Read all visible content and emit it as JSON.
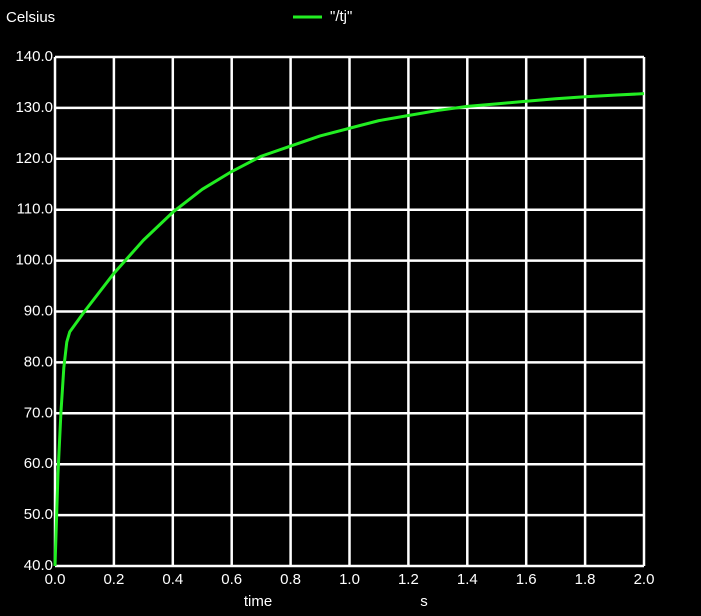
{
  "chart_data": {
    "type": "line",
    "y_label": "Celsius",
    "x_label": "time",
    "x_unit": "s",
    "x": [
      0,
      0.01,
      0.02,
      0.03,
      0.04,
      0.05,
      0.1,
      0.2,
      0.3,
      0.4,
      0.5,
      0.6,
      0.7,
      0.8,
      0.9,
      1.0,
      1.1,
      1.2,
      1.3,
      1.4,
      1.5,
      1.6,
      1.7,
      1.8,
      1.9,
      2.0
    ],
    "series": [
      {
        "name": "\"/tj\"",
        "color": "#22ee22",
        "values": [
          40,
          58,
          70,
          79,
          84,
          86,
          90,
          97.5,
          104,
          109.5,
          114,
          117.5,
          120.5,
          122.5,
          124.5,
          126,
          127.5,
          128.5,
          129.5,
          130.3,
          130.8,
          131.3,
          131.8,
          132.2,
          132.5,
          132.8
        ]
      }
    ],
    "xlim": [
      0,
      2.0
    ],
    "xticks": [
      {
        "value": 0,
        "label": "0.0"
      },
      {
        "value": 0.2,
        "label": "0.2"
      },
      {
        "value": 0.4,
        "label": "0.4"
      },
      {
        "value": 0.6,
        "label": "0.6"
      },
      {
        "value": 0.8,
        "label": "0.8"
      },
      {
        "value": 1.0,
        "label": "1.0"
      },
      {
        "value": 1.2,
        "label": "1.2"
      },
      {
        "value": 1.4,
        "label": "1.4"
      },
      {
        "value": 1.6,
        "label": "1.6"
      },
      {
        "value": 1.8,
        "label": "1.8"
      },
      {
        "value": 2.0,
        "label": "2.0"
      }
    ],
    "ylim": [
      40,
      140
    ],
    "yticks": [
      {
        "value": 40,
        "label": "40.0"
      },
      {
        "value": 50,
        "label": "50.0"
      },
      {
        "value": 60,
        "label": "60.0"
      },
      {
        "value": 70,
        "label": "70.0"
      },
      {
        "value": 80,
        "label": "80.0"
      },
      {
        "value": 90,
        "label": "90.0"
      },
      {
        "value": 100,
        "label": "100.0"
      },
      {
        "value": 110,
        "label": "110.0"
      },
      {
        "value": 120,
        "label": "120.0"
      },
      {
        "value": 130,
        "label": "130.0"
      },
      {
        "value": 140,
        "label": "140.0"
      }
    ],
    "grid": true
  }
}
